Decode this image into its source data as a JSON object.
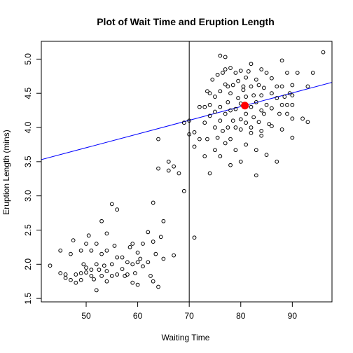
{
  "chart_data": {
    "type": "scatter",
    "title": "Plot of Wait Time and Eruption Length",
    "xlabel": "Waiting Time",
    "ylabel": "Eruption Length (mins)",
    "xlim": [
      41.3,
      97.7
    ],
    "ylim": [
      1.45,
      5.26
    ],
    "xticks": [
      50,
      60,
      70,
      80,
      90
    ],
    "yticks": [
      1.5,
      2.0,
      2.5,
      3.0,
      3.5,
      4.0,
      4.5,
      5.0
    ],
    "ytick_labels": [
      "1.5",
      "2.0",
      "2.5",
      "3.0",
      "3.5",
      "4.0",
      "4.5",
      "5.0"
    ],
    "grid": false,
    "legend": "none",
    "point_color": "#000000",
    "series": [
      {
        "points": [
          [
            43,
            1.98
          ],
          [
            45,
            2.2
          ],
          [
            45,
            1.87
          ],
          [
            46,
            1.85
          ],
          [
            46,
            1.8
          ],
          [
            47,
            1.77
          ],
          [
            47,
            2.15
          ],
          [
            47.5,
            2.35
          ],
          [
            48,
            1.85
          ],
          [
            48,
            1.73
          ],
          [
            49,
            1.87
          ],
          [
            49,
            1.77
          ],
          [
            49,
            2.2
          ],
          [
            49.5,
            2.0
          ],
          [
            50,
            1.88
          ],
          [
            50,
            2.3
          ],
          [
            50,
            1.95
          ],
          [
            50.5,
            2.42
          ],
          [
            51,
            2.2
          ],
          [
            51,
            1.83
          ],
          [
            51,
            1.92
          ],
          [
            51.5,
            1.78
          ],
          [
            52,
            2.0
          ],
          [
            52,
            1.62
          ],
          [
            52,
            2.3
          ],
          [
            52.5,
            1.92
          ],
          [
            53,
            1.83
          ],
          [
            53,
            2.15
          ],
          [
            53,
            2.63
          ],
          [
            53.5,
            1.98
          ],
          [
            54,
            1.9
          ],
          [
            54,
            2.45
          ],
          [
            54,
            2.2
          ],
          [
            54,
            1.75
          ],
          [
            55,
            2.0
          ],
          [
            55,
            1.83
          ],
          [
            55,
            2.88
          ],
          [
            55.5,
            2.27
          ],
          [
            56,
            1.85
          ],
          [
            56,
            2.1
          ],
          [
            56,
            2.8
          ],
          [
            57,
            1.93
          ],
          [
            57,
            2.1
          ],
          [
            57.5,
            1.83
          ],
          [
            58,
            2.03
          ],
          [
            58,
            1.85
          ],
          [
            58.5,
            2.25
          ],
          [
            59,
            1.73
          ],
          [
            59,
            2.0
          ],
          [
            59,
            2.3
          ],
          [
            59.5,
            1.87
          ],
          [
            60,
            2.03
          ],
          [
            60,
            2.17
          ],
          [
            60,
            1.7
          ],
          [
            60.5,
            2.08
          ],
          [
            61,
            2.3
          ],
          [
            61,
            1.97
          ],
          [
            62,
            2.47
          ],
          [
            62,
            2.03
          ],
          [
            62.5,
            1.83
          ],
          [
            63,
            2.9
          ],
          [
            63,
            2.33
          ],
          [
            63,
            1.75
          ],
          [
            63.5,
            2.15
          ],
          [
            64,
            1.67
          ],
          [
            64,
            3.4
          ],
          [
            64,
            3.83
          ],
          [
            64.5,
            2.4
          ],
          [
            65,
            2.63
          ],
          [
            65,
            2.08
          ],
          [
            66,
            3.5
          ],
          [
            66,
            3.37
          ],
          [
            67,
            2.13
          ],
          [
            67,
            3.43
          ],
          [
            68,
            3.33
          ],
          [
            69,
            3.07
          ],
          [
            69,
            4.07
          ],
          [
            70,
            3.9
          ],
          [
            70,
            4.1
          ],
          [
            71,
            2.39
          ],
          [
            71,
            3.93
          ],
          [
            71,
            3.72
          ],
          [
            72,
            4.3
          ],
          [
            72,
            3.83
          ],
          [
            73,
            4.3
          ],
          [
            73,
            3.58
          ],
          [
            73,
            4.07
          ],
          [
            73.5,
            4.53
          ],
          [
            73.5,
            3.83
          ],
          [
            74,
            4.17
          ],
          [
            74,
            4.33
          ],
          [
            74,
            4.5
          ],
          [
            74,
            3.33
          ],
          [
            74.5,
            4.7
          ],
          [
            75,
            4.0
          ],
          [
            75,
            3.67
          ],
          [
            75,
            4.45
          ],
          [
            75,
            4.23
          ],
          [
            75.5,
            4.77
          ],
          [
            75.5,
            3.85
          ],
          [
            76,
            4.53
          ],
          [
            76,
            4.1
          ],
          [
            76,
            3.58
          ],
          [
            76,
            5.05
          ],
          [
            76,
            4.3
          ],
          [
            76.5,
            3.95
          ],
          [
            76.5,
            4.8
          ],
          [
            77,
            4.2
          ],
          [
            77,
            4.63
          ],
          [
            77,
            3.77
          ],
          [
            77,
            4.85
          ],
          [
            77,
            5.03
          ],
          [
            77.5,
            4.0
          ],
          [
            77.5,
            4.37
          ],
          [
            77.5,
            4.6
          ],
          [
            78,
            4.5
          ],
          [
            78,
            4.25
          ],
          [
            78,
            3.45
          ],
          [
            78,
            4.87
          ],
          [
            78,
            3.83
          ],
          [
            78.5,
            4.62
          ],
          [
            78.5,
            4.1
          ],
          [
            79,
            4.0
          ],
          [
            79,
            4.8
          ],
          [
            79,
            4.27
          ],
          [
            79,
            3.67
          ],
          [
            79.5,
            4.43
          ],
          [
            79.5,
            4.68
          ],
          [
            80,
            4.35
          ],
          [
            80,
            3.97
          ],
          [
            80,
            4.83
          ],
          [
            80,
            3.5
          ],
          [
            80,
            4.12
          ],
          [
            80.5,
            4.55
          ],
          [
            80.5,
            4.6
          ],
          [
            81,
            4.07
          ],
          [
            81,
            4.45
          ],
          [
            81,
            3.75
          ],
          [
            81,
            4.73
          ],
          [
            81,
            4.2
          ],
          [
            81.5,
            4.82
          ],
          [
            82,
            4.3
          ],
          [
            82,
            4.0
          ],
          [
            82,
            4.6
          ],
          [
            82,
            3.92
          ],
          [
            82,
            4.93
          ],
          [
            82.5,
            4.47
          ],
          [
            82.5,
            4.15
          ],
          [
            83,
            4.37
          ],
          [
            83,
            3.67
          ],
          [
            83,
            4.7
          ],
          [
            83,
            3.3
          ],
          [
            83.5,
            4.62
          ],
          [
            83.5,
            4.08
          ],
          [
            84,
            4.47
          ],
          [
            84,
            4.85
          ],
          [
            84,
            3.88
          ],
          [
            84,
            3.95
          ],
          [
            84,
            4.25
          ],
          [
            84.5,
            4.2
          ],
          [
            84.5,
            4.58
          ],
          [
            85,
            4.8
          ],
          [
            85,
            3.6
          ],
          [
            85,
            4.33
          ],
          [
            85.5,
            4.05
          ],
          [
            86,
            4.28
          ],
          [
            86,
            4.72
          ],
          [
            86,
            4.5
          ],
          [
            86,
            4.02
          ],
          [
            87,
            4.43
          ],
          [
            87,
            4.6
          ],
          [
            87,
            3.5
          ],
          [
            87.5,
            4.2
          ],
          [
            88,
            4.33
          ],
          [
            88,
            4.98
          ],
          [
            88,
            4.6
          ],
          [
            88,
            3.97
          ],
          [
            88.5,
            4.45
          ],
          [
            89,
            4.8
          ],
          [
            89,
            4.2
          ],
          [
            89,
            4.33
          ],
          [
            89.5,
            4.5
          ],
          [
            90,
            4.33
          ],
          [
            90,
            4.47
          ],
          [
            90,
            4.62
          ],
          [
            90,
            3.85
          ],
          [
            90,
            4.13
          ],
          [
            91,
            4.8
          ],
          [
            92,
            4.13
          ],
          [
            93,
            4.6
          ],
          [
            93,
            4.08
          ],
          [
            94,
            4.8
          ],
          [
            96,
            5.1
          ]
        ]
      }
    ],
    "mean_point": {
      "x": 80.8,
      "y": 4.32,
      "color": "#ff0000"
    },
    "reference_line": {
      "x": 70,
      "color": "#000000"
    },
    "regression_line": {
      "y_at_xmin": 3.53,
      "y_at_xmax": 4.66,
      "color": "#0000ff"
    }
  }
}
